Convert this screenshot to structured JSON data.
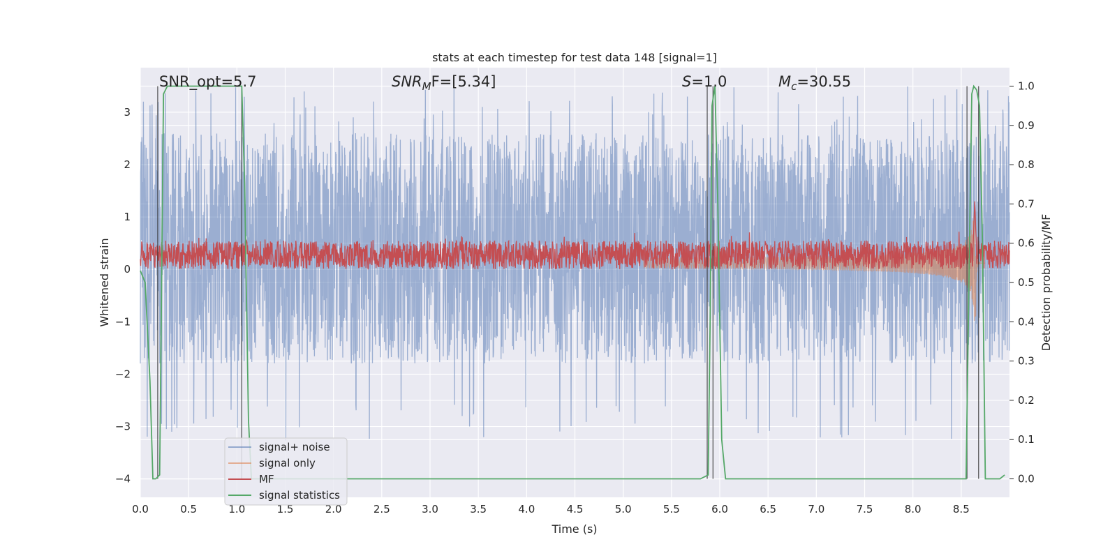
{
  "chart_data": {
    "type": "line",
    "title": "stats at each timestep for test data 148 [signal=1]",
    "xlabel": "Time (s)",
    "ylabel": "Whitened strain",
    "y2label": "Detection probability/MF",
    "xlim": [
      0.0,
      9.0
    ],
    "ylim": [
      -4.35,
      3.85
    ],
    "y2lim": [
      -0.047,
      1.047
    ],
    "xticks": [
      "0.0",
      "0.5",
      "1.0",
      "1.5",
      "2.0",
      "2.5",
      "3.0",
      "3.5",
      "4.0",
      "4.5",
      "5.0",
      "5.5",
      "6.0",
      "6.5",
      "7.0",
      "7.5",
      "8.0",
      "8.5"
    ],
    "yticks": [
      "3",
      "2",
      "1",
      "0",
      "−1",
      "−2",
      "−3",
      "−4"
    ],
    "y2ticks": [
      "1.0",
      "0.9",
      "0.8",
      "0.7",
      "0.6",
      "0.5",
      "0.4",
      "0.3",
      "0.2",
      "0.1",
      "0.0"
    ],
    "grid": true,
    "legend_position": "lower-left",
    "annotations": {
      "snr_opt": "SNR_opt=5.7",
      "snr_mf_name": "SNR",
      "snr_mf_sub": "M",
      "snr_mf_rest": "F=[5.34]",
      "s_name": "S",
      "s_rest": "=1.0",
      "mc_name": "M",
      "mc_sub": "c",
      "mc_rest": "=30.55"
    },
    "series": [
      {
        "name": "signal+ noise",
        "color": "#4c72b0",
        "axis": "left",
        "band": [
          -1.8,
          2.6
        ],
        "spike_range": [
          -3.3,
          3.5
        ]
      },
      {
        "name": "signal only",
        "color": "#dd8452",
        "axis": "left",
        "chirp_peak_time": 8.65,
        "chirp_peak_amp": 1.4
      },
      {
        "name": "MF",
        "color": "#c44e52",
        "axis": "left",
        "band": [
          0.0,
          0.55
        ]
      },
      {
        "name": "signal statistics",
        "color": "#55a868",
        "axis": "right",
        "x": [
          0.0,
          0.05,
          0.1,
          0.13,
          0.16,
          0.2,
          0.24,
          0.28,
          0.3,
          0.6,
          1.0,
          1.05,
          1.08,
          1.12,
          1.15,
          1.2,
          5.8,
          5.88,
          5.9,
          5.92,
          5.95,
          5.98,
          6.02,
          6.06,
          6.2,
          8.55,
          8.58,
          8.61,
          8.63,
          8.66,
          8.69,
          8.72,
          8.75,
          8.78,
          8.8,
          8.9,
          8.95
        ],
        "y": [
          0.53,
          0.5,
          0.25,
          0.0,
          0.0,
          0.01,
          0.98,
          1.0,
          1.0,
          1.0,
          1.0,
          1.0,
          0.75,
          0.15,
          0.0,
          0.0,
          0.0,
          0.01,
          0.4,
          0.95,
          1.0,
          0.7,
          0.1,
          0.0,
          0.0,
          0.0,
          0.5,
          0.98,
          1.0,
          0.99,
          0.95,
          0.6,
          0.0,
          0.0,
          0.0,
          0.0,
          0.01
        ]
      }
    ],
    "vlines": [
      0.18,
      1.05,
      5.87,
      5.93,
      8.56,
      8.68
    ]
  }
}
